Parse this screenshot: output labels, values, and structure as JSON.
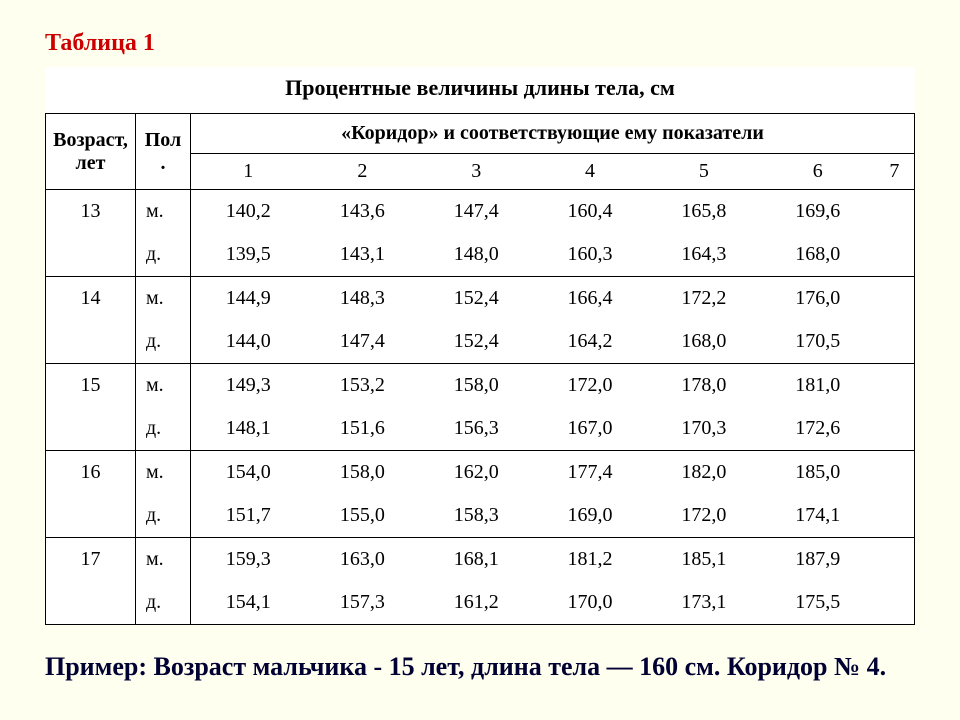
{
  "label": "Таблица 1",
  "title": "Процентные величины длины тела, см",
  "headers": {
    "age": "Возраст, лет",
    "sex": "Пол .",
    "corridor": "«Коридор» и соответствующие ему показатели",
    "cols": [
      "1",
      "2",
      "3",
      "4",
      "5",
      "6",
      "7"
    ]
  },
  "sex_labels": {
    "m": "м.",
    "d": "д."
  },
  "ages": [
    "13",
    "14",
    "15",
    "16",
    "17"
  ],
  "data": {
    "13": {
      "m": [
        "140,2",
        "143,6",
        "147,4",
        "160,4",
        "165,8",
        "169,6",
        ""
      ],
      "d": [
        "139,5",
        "143,1",
        "148,0",
        "160,3",
        "164,3",
        "168,0",
        ""
      ]
    },
    "14": {
      "m": [
        "144,9",
        "148,3",
        "152,4",
        "166,4",
        "172,2",
        "176,0",
        ""
      ],
      "d": [
        "144,0",
        "147,4",
        "152,4",
        "164,2",
        "168,0",
        "170,5",
        ""
      ]
    },
    "15": {
      "m": [
        "149,3",
        "153,2",
        "158,0",
        "172,0",
        "178,0",
        "181,0",
        ""
      ],
      "d": [
        "148,1",
        "151,6",
        "156,3",
        "167,0",
        "170,3",
        "172,6",
        ""
      ]
    },
    "16": {
      "m": [
        "154,0",
        "158,0",
        "162,0",
        "177,4",
        "182,0",
        "185,0",
        ""
      ],
      "d": [
        "151,7",
        "155,0",
        "158,3",
        "169,0",
        "172,0",
        "174,1",
        ""
      ]
    },
    "17": {
      "m": [
        "159,3",
        "163,0",
        "168,1",
        "181,2",
        "185,1",
        "187,9",
        ""
      ],
      "d": [
        "154,1",
        "157,3",
        "161,2",
        "170,0",
        "173,1",
        "175,5",
        ""
      ]
    }
  },
  "example": "Пример:  Возраст мальчика - 15 лет, длина тела — 160 см. Коридор № 4.",
  "colors": {
    "page_bg": "#fffff0",
    "table_bg": "#ffffff",
    "label_color": "#cc0000",
    "text_color": "#000000",
    "example_color": "#000033",
    "border_color": "#000000"
  },
  "typography": {
    "font_family": "Times New Roman",
    "label_fontsize": 24,
    "title_fontsize": 22,
    "cell_fontsize": 20,
    "example_fontsize": 26
  },
  "table_style": {
    "type": "table",
    "border_width": 1.5,
    "age_col_width": 90,
    "sex_col_width": 55
  }
}
